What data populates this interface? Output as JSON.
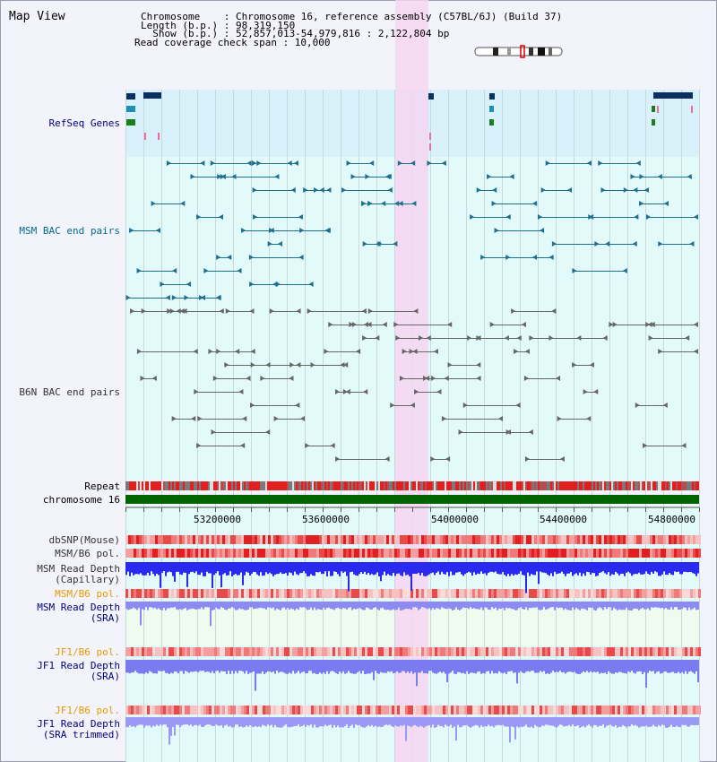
{
  "view_title": "Map View",
  "info": {
    "chromosome_line": "Chromosome    : Chromosome 16, reference assembly (C57BL/6J) (Build 37)",
    "length_line": "Length (b.p.) : 98,319,150",
    "show_line": "  Show (b.p.) : 52,857,013-54,979,816 : 2,122,804 bp",
    "coverage_line": "Read coverage check span : 10,000"
  },
  "tracks": {
    "refseq": "RefSeq Genes",
    "msm_bac": "MSM BAC end pairs",
    "b6n_bac": "B6N BAC end pairs",
    "repeat": "Repeat",
    "chrom": "chromosome 16",
    "dbsnp": "dbSNP(Mouse)",
    "msm_b6_pol_1": "MSM/B6 pol.",
    "msm_read_depth_cap": "MSM Read Depth",
    "msm_read_depth_cap_sub": "(Capillary)",
    "msm_b6_pol_2": "MSM/B6 pol.",
    "msm_read_depth_sra": "MSM Read Depth",
    "msm_read_depth_sra_sub": "(SRA)",
    "jf1_b6_pol_1": "JF1/B6 pol.",
    "jf1_read_depth_sra": "JF1 Read Depth",
    "jf1_read_depth_sra_sub": "(SRA)",
    "jf1_b6_pol_2": "JF1/B6 pol.",
    "jf1_read_depth_trim": "JF1 Read Depth",
    "jf1_read_depth_trim_sub": "(SRA trimmed)"
  },
  "axis": {
    "ticks": [
      "53200000",
      "53600000",
      "54000000",
      "54400000",
      "54800000"
    ]
  },
  "colors": {
    "refseq_bg": "#d8f1fb",
    "track_bg": "#e3fafa",
    "highlight": "#f6d6f1",
    "msm_feature": "#1f6f8f",
    "b6n_feature": "#666666",
    "chromosome": "#006400",
    "snp_red": "#e02020",
    "depth_capillary": "#2a2aee",
    "depth_sra": "#8b8bf2"
  }
}
